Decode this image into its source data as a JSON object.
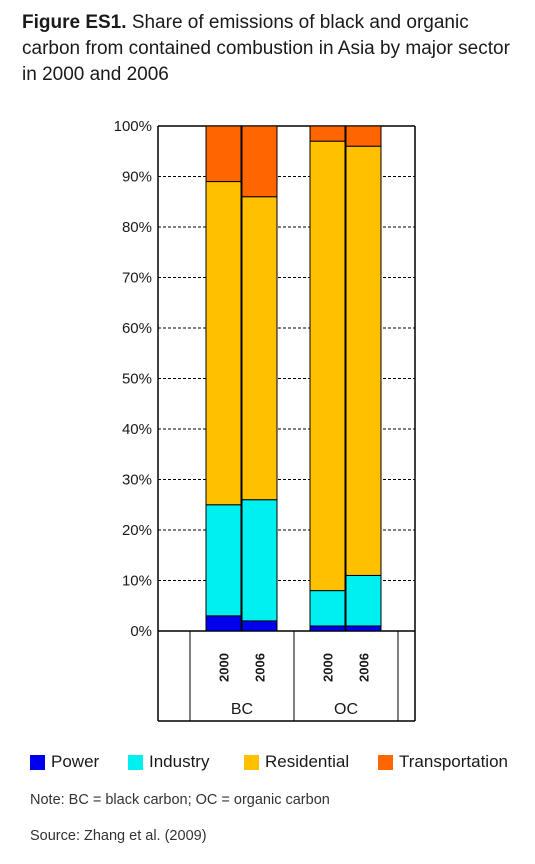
{
  "figure": {
    "label": "Figure ES1.",
    "caption": "Share of emissions of black and organic carbon from contained combustion in Asia by major sector in 2000 and 2006"
  },
  "chart_data": {
    "type": "bar",
    "stacked": true,
    "y_unit": "percent",
    "ylim": [
      0,
      100
    ],
    "y_ticks": [
      "0%",
      "10%",
      "20%",
      "30%",
      "40%",
      "50%",
      "60%",
      "70%",
      "80%",
      "90%",
      "100%"
    ],
    "grid": "dashed horizontal",
    "groups": [
      "BC",
      "OC"
    ],
    "categories": [
      "2000",
      "2006",
      "2000",
      "2006"
    ],
    "category_groups": [
      "BC",
      "BC",
      "OC",
      "OC"
    ],
    "series": [
      {
        "name": "Power",
        "color": "#0000ee",
        "values": [
          3,
          2,
          1,
          1
        ]
      },
      {
        "name": "Industry",
        "color": "#00f0f0",
        "values": [
          22,
          24,
          7,
          10
        ]
      },
      {
        "name": "Residential",
        "color": "#ffc000",
        "values": [
          64,
          60,
          89,
          85
        ]
      },
      {
        "name": "Transportation",
        "color": "#ff6600",
        "values": [
          11,
          14,
          3,
          4
        ]
      }
    ],
    "legend_position": "bottom"
  },
  "note": "Note: BC = black carbon; OC = organic carbon",
  "source": "Source: Zhang et al. (2009)"
}
